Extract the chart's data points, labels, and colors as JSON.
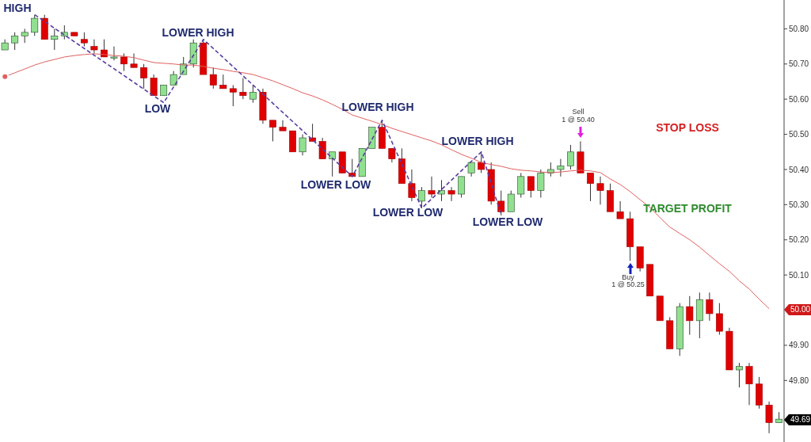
{
  "chart_data": {
    "type": "candlestick",
    "tick_labels": "y",
    "categories": [
      null,
      null,
      null,
      null,
      null,
      null,
      null,
      null,
      null,
      null,
      null,
      null,
      null,
      null,
      null,
      null,
      null,
      null,
      null,
      null,
      null,
      null,
      null,
      null,
      null,
      null,
      null,
      null,
      null,
      null,
      null,
      null,
      null,
      null,
      null,
      null,
      null,
      null,
      null,
      null,
      null,
      null,
      null,
      null,
      null,
      null,
      null,
      null,
      null,
      null,
      null,
      null,
      null,
      null,
      null,
      null,
      null,
      null,
      null,
      null,
      null,
      null,
      null,
      null,
      null,
      null,
      null,
      null,
      null,
      null,
      null,
      null,
      null,
      null,
      null,
      null,
      null,
      null,
      null
    ],
    "ohlc": [
      [
        50.74,
        50.77,
        50.74,
        50.76
      ],
      [
        50.76,
        50.79,
        50.74,
        50.78
      ],
      [
        50.78,
        50.8,
        50.76,
        50.79
      ],
      [
        50.79,
        50.84,
        50.78,
        50.83
      ],
      [
        50.83,
        50.84,
        50.77,
        50.77
      ],
      [
        50.77,
        50.8,
        50.74,
        50.78
      ],
      [
        50.78,
        50.81,
        50.77,
        50.79
      ],
      [
        50.79,
        50.79,
        50.78,
        50.78
      ],
      [
        50.77,
        50.79,
        50.75,
        50.76
      ],
      [
        50.75,
        50.77,
        50.73,
        50.74
      ],
      [
        50.74,
        50.77,
        50.72,
        50.72
      ],
      [
        50.72,
        50.75,
        50.71,
        50.72
      ],
      [
        50.72,
        50.73,
        50.68,
        50.7
      ],
      [
        50.7,
        50.73,
        50.69,
        50.69
      ],
      [
        50.69,
        50.7,
        50.63,
        50.66
      ],
      [
        50.66,
        50.67,
        50.61,
        50.61
      ],
      [
        50.61,
        50.64,
        50.61,
        50.64
      ],
      [
        50.64,
        50.68,
        50.64,
        50.67
      ],
      [
        50.67,
        50.72,
        50.67,
        50.7
      ],
      [
        50.7,
        50.77,
        50.69,
        50.76
      ],
      [
        50.76,
        50.77,
        50.67,
        50.67
      ],
      [
        50.67,
        50.69,
        50.63,
        50.64
      ],
      [
        50.64,
        50.67,
        50.63,
        50.63
      ],
      [
        50.63,
        50.64,
        50.58,
        50.62
      ],
      [
        50.62,
        50.66,
        50.6,
        50.61
      ],
      [
        50.6,
        50.64,
        50.59,
        50.62
      ],
      [
        50.62,
        50.63,
        50.53,
        50.54
      ],
      [
        50.54,
        50.54,
        50.48,
        50.52
      ],
      [
        50.52,
        50.54,
        50.51,
        50.51
      ],
      [
        50.51,
        50.51,
        50.45,
        50.45
      ],
      [
        50.45,
        50.5,
        50.44,
        50.49
      ],
      [
        50.49,
        50.53,
        50.48,
        50.48
      ],
      [
        50.48,
        50.49,
        50.43,
        50.43
      ],
      [
        50.43,
        50.45,
        50.38,
        50.45
      ],
      [
        50.45,
        50.45,
        50.39,
        50.39
      ],
      [
        50.39,
        50.43,
        50.38,
        50.38
      ],
      [
        50.38,
        50.46,
        50.38,
        50.46
      ],
      [
        50.46,
        50.52,
        50.46,
        50.52
      ],
      [
        50.52,
        50.54,
        50.46,
        50.46
      ],
      [
        50.46,
        50.46,
        50.42,
        50.43
      ],
      [
        50.43,
        50.46,
        50.36,
        50.36
      ],
      [
        50.36,
        50.4,
        50.31,
        50.32
      ],
      [
        50.31,
        50.35,
        50.29,
        50.34
      ],
      [
        50.34,
        50.38,
        50.32,
        50.33
      ],
      [
        50.33,
        50.37,
        50.31,
        50.34
      ],
      [
        50.34,
        50.35,
        50.31,
        50.33
      ],
      [
        50.33,
        50.38,
        50.32,
        50.38
      ],
      [
        50.39,
        50.42,
        50.38,
        50.42
      ],
      [
        50.42,
        50.45,
        50.39,
        50.4
      ],
      [
        50.4,
        50.42,
        50.3,
        50.31
      ],
      [
        50.31,
        50.34,
        50.27,
        50.28
      ],
      [
        50.28,
        50.34,
        50.28,
        50.33
      ],
      [
        50.33,
        50.39,
        50.32,
        50.38
      ],
      [
        50.38,
        50.38,
        50.32,
        50.34
      ],
      [
        50.34,
        50.4,
        50.32,
        50.39
      ],
      [
        50.39,
        50.42,
        50.38,
        50.4
      ],
      [
        50.4,
        50.43,
        50.38,
        50.41
      ],
      [
        50.41,
        50.47,
        50.4,
        50.45
      ],
      [
        50.45,
        50.48,
        50.39,
        50.39
      ],
      [
        50.39,
        50.39,
        50.31,
        50.36
      ],
      [
        50.36,
        50.38,
        50.3,
        50.34
      ],
      [
        50.34,
        50.36,
        50.28,
        50.28
      ],
      [
        50.28,
        50.31,
        50.26,
        50.26
      ],
      [
        50.26,
        50.28,
        50.14,
        50.18
      ],
      [
        50.18,
        50.18,
        50.11,
        50.12
      ],
      [
        50.13,
        50.13,
        50.04,
        50.04
      ],
      [
        50.04,
        50.04,
        49.97,
        49.97
      ],
      [
        49.97,
        49.98,
        49.89,
        49.89
      ],
      [
        49.89,
        50.02,
        49.87,
        50.01
      ],
      [
        50.01,
        50.04,
        49.93,
        49.97
      ],
      [
        49.97,
        50.05,
        49.92,
        50.03
      ],
      [
        50.03,
        50.05,
        49.97,
        49.99
      ],
      [
        49.99,
        50.02,
        49.93,
        49.94
      ],
      [
        49.94,
        49.95,
        49.83,
        49.83
      ],
      [
        49.83,
        49.85,
        49.78,
        49.84
      ],
      [
        49.84,
        49.85,
        49.73,
        49.79
      ],
      [
        49.79,
        49.81,
        49.72,
        49.73
      ],
      [
        49.73,
        49.74,
        49.65,
        49.68
      ],
      [
        49.68,
        49.71,
        49.68,
        49.69
      ]
    ],
    "colors": [
      "#90e090",
      "#90e090",
      "#90e090",
      "#90e090",
      "#e00000",
      "#90e090",
      "#90e090",
      "#e00000",
      "#e00000",
      "#e00000",
      "#e00000",
      "#90e090",
      "#e00000",
      "#e00000",
      "#e00000",
      "#e00000",
      "#90e090",
      "#90e090",
      "#90e090",
      "#90e090",
      "#e00000",
      "#e00000",
      "#e00000",
      "#e00000",
      "#e00000",
      "#90e090",
      "#e00000",
      "#e00000",
      "#e00000",
      "#e00000",
      "#90e090",
      "#e00000",
      "#e00000",
      "#90e090",
      "#e00000",
      "#e00000",
      "#90e090",
      "#90e090",
      "#e00000",
      "#e00000",
      "#e00000",
      "#e00000",
      "#90e090",
      "#e00000",
      "#90e090",
      "#e00000",
      "#90e090",
      "#90e090",
      "#e00000",
      "#e00000",
      "#e00000",
      "#90e090",
      "#90e090",
      "#e00000",
      "#90e090",
      "#90e090",
      "#90e090",
      "#90e090",
      "#e00000",
      "#e00000",
      "#e00000",
      "#e00000",
      "#e00000",
      "#e00000",
      "#e00000",
      "#e00000",
      "#e00000",
      "#e00000",
      "#90e090",
      "#e00000",
      "#90e090",
      "#e00000",
      "#e00000",
      "#e00000",
      "#90e090",
      "#e00000",
      "#e00000",
      "#e00000",
      "#90e090"
    ],
    "series": [
      {
        "type": "line",
        "color": "#e06060",
        "values": [
          50.664,
          50.675,
          50.686,
          50.697,
          50.706,
          50.713,
          50.72,
          50.724,
          50.727,
          50.729,
          50.727,
          50.724,
          50.722,
          50.718,
          50.711,
          50.704,
          50.702,
          50.7,
          50.697,
          50.697,
          50.693,
          50.688,
          50.684,
          50.679,
          50.675,
          50.67,
          50.661,
          50.652,
          50.641,
          50.63,
          50.618,
          50.609,
          50.598,
          50.585,
          50.571,
          50.555,
          50.546,
          50.537,
          50.528,
          50.517,
          50.508,
          50.499,
          50.49,
          50.481,
          50.47,
          50.456,
          50.443,
          50.432,
          50.42,
          50.414,
          50.409,
          50.402,
          50.398,
          50.396,
          50.393,
          50.391,
          50.393,
          50.396,
          50.398,
          50.396,
          50.391,
          50.373,
          50.357,
          50.337,
          50.314,
          50.292,
          50.263,
          50.236,
          50.218,
          50.2,
          50.179,
          50.155,
          50.132,
          50.11,
          50.083,
          50.06,
          50.031,
          50.004,
          null
        ]
      },
      {
        "type": "line",
        "color": "#5a3fa0",
        "line_style": "dashed",
        "values": [
          null,
          null,
          null,
          50.84,
          null,
          null,
          null,
          null,
          null,
          null,
          null,
          null,
          null,
          null,
          null,
          null,
          50.59,
          null,
          null,
          null,
          50.77,
          null,
          null,
          null,
          null,
          null,
          null,
          null,
          null,
          null,
          null,
          null,
          null,
          null,
          null,
          50.38,
          null,
          null,
          50.54,
          null,
          null,
          null,
          50.29,
          null,
          null,
          null,
          null,
          null,
          50.45,
          null,
          50.27,
          null,
          null,
          null,
          null,
          null,
          null,
          null,
          null,
          null,
          null,
          null,
          null,
          null,
          null,
          null,
          null,
          null,
          null,
          null,
          null,
          null,
          null,
          null,
          null,
          null,
          null,
          null,
          null
        ]
      }
    ],
    "ylim": [
      49.625,
      50.882
    ],
    "yticks": [
      {
        "value": 49.8,
        "label": "49.80"
      },
      {
        "value": 49.9,
        "label": "49.90"
      },
      {
        "value": 50.1,
        "label": "50.10"
      },
      {
        "value": 50.2,
        "label": "50.20"
      },
      {
        "value": 50.3,
        "label": "50.30"
      },
      {
        "value": 50.4,
        "label": "50.40"
      },
      {
        "value": 50.5,
        "label": "50.50"
      },
      {
        "value": 50.6,
        "label": "50.60"
      },
      {
        "value": 50.7,
        "label": "50.70"
      },
      {
        "value": 50.8,
        "label": "50.80"
      }
    ],
    "annotations": [
      "HIGH",
      "LOW",
      "LOWER HIGH",
      "LOWER HIGH",
      "LOWER HIGH",
      "LOWER LOW",
      "LOWER LOW",
      "LOWER LOW",
      "STOP LOSS",
      "TARGET PROFIT",
      "Sell",
      "1 @ 50.40",
      "Buy",
      "1 @ 50.25",
      "50.00",
      "49.69"
    ]
  }
}
